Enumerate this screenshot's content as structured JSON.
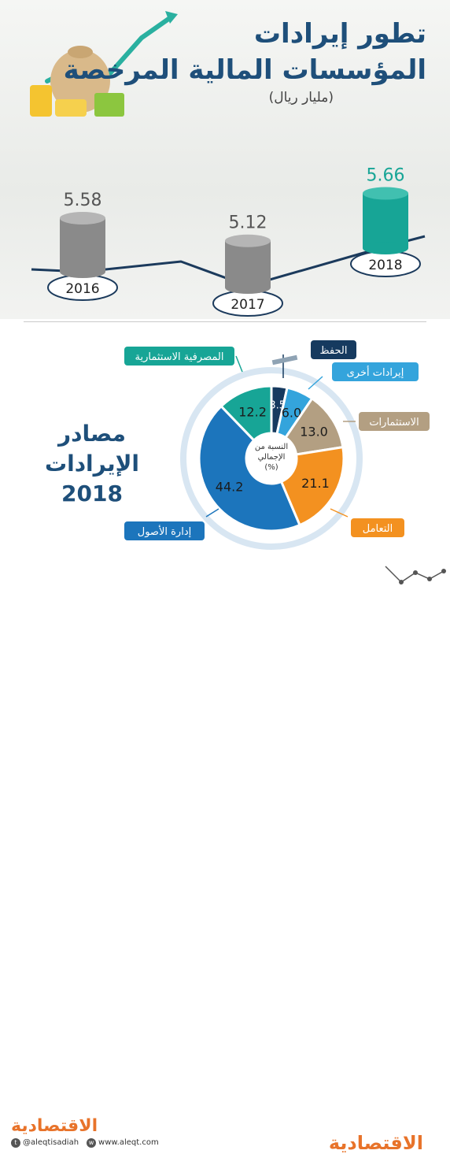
{
  "title_line1": "تطور إيرادات",
  "title_line2": "المؤسسات المالية المرخصة",
  "unit": "(مليار ريال)",
  "section_title_line1": "مصادر الإيرادات",
  "section_title_line2": "2018",
  "donut_center_label": [
    "النسبة من",
    "الإجمالي",
    "(%)"
  ],
  "colors": {
    "navy": "#1e4f7a",
    "teal": "#17a596",
    "orange": "#f39120",
    "tan": "#b39f82",
    "lightblue": "#34a4dc",
    "darkblue": "#1c75bc",
    "darknavy": "#163a5f",
    "gray": "#8a8a8a"
  },
  "chart_data": [
    {
      "type": "bar",
      "categories": [
        "2016",
        "2017",
        "2018"
      ],
      "values": [
        5.58,
        5.12,
        5.66
      ],
      "value_labels": [
        "5.58",
        "5.12",
        "5.66"
      ],
      "title": "تطور إيرادات المؤسسات المالية المرخصة",
      "ylabel": "مليار ريال"
    },
    {
      "type": "pie",
      "title": "مصادر الإيرادات 2018",
      "slices": [
        {
          "label": "الحفظ",
          "value": 3.5,
          "text": "3.5",
          "color": "#163a5f"
        },
        {
          "label": "إيرادات أخرى",
          "value": 6.0,
          "text": "6.0",
          "color": "#34a4dc"
        },
        {
          "label": "الاستثمارات",
          "value": 13.0,
          "text": "13.0",
          "color": "#b39f82"
        },
        {
          "label": "التعامل",
          "value": 21.1,
          "text": "21.1",
          "color": "#f39120"
        },
        {
          "label": "إدارة الأصول",
          "value": 44.2,
          "text": "44.2",
          "color": "#1c75bc"
        },
        {
          "label": "المصرفية الاستثمارية",
          "value": 12.2,
          "text": "12.2",
          "color": "#17a596"
        }
      ]
    }
  ],
  "footer": {
    "logo": "الاقتصادية",
    "twitter": "@aleqtisadiah",
    "website": "www.aleqt.com"
  }
}
